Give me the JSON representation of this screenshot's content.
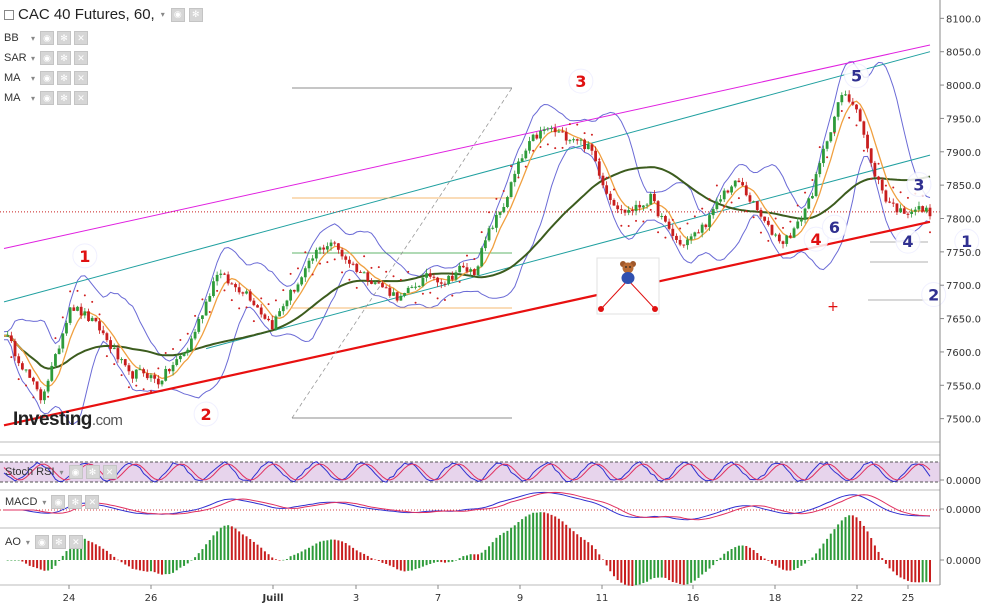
{
  "header": {
    "title": "CAC 40 Futures, 60,",
    "dropdown_glyph": "▾"
  },
  "indicators": [
    {
      "label": "BB"
    },
    {
      "label": "SAR"
    },
    {
      "label": "MA"
    },
    {
      "label": "MA"
    }
  ],
  "sub_panels": {
    "stoch": {
      "label": "Stoch RSI",
      "value": "0.0000"
    },
    "macd": {
      "label": "MACD",
      "value": "0.0000"
    },
    "ao": {
      "label": "AO",
      "value": "0.0000"
    }
  },
  "logo": {
    "brand": "Investing",
    "suffix": ".com"
  },
  "colors": {
    "candle_up": "#2e9b3a",
    "candle_down": "#c81e1e",
    "bollinger": "#6b6bd6",
    "ma_long": "#3c5c1e",
    "ma_short": "#f0a040",
    "trend_red": "#e81010",
    "trend_magenta": "#e020e0",
    "channel_teal": "#20a0a0",
    "wave_red": "#e01010",
    "wave_blue": "#303090",
    "sar": "#d02020"
  },
  "chart_data": {
    "type": "candlestick",
    "title": "CAC 40 Futures, 60,",
    "x_ticks": [
      "24",
      "26",
      "Juill",
      "3",
      "7",
      "9",
      "11",
      "16",
      "18",
      "22",
      "25"
    ],
    "y_ticks": [
      8100,
      8050,
      8000,
      7950,
      7900,
      7850,
      7800,
      7750,
      7700,
      7650,
      7600,
      7550,
      7500
    ],
    "y_tick_labels": [
      "8100.0",
      "8050.0",
      "8000.0",
      "7950.0",
      "7900.0",
      "7850.0",
      "7800.0",
      "7750.0",
      "7700.0",
      "7650.0",
      "7600.0",
      "7550.0",
      "7500.0"
    ],
    "ylim": [
      7465,
      8120
    ],
    "current_price": 7810,
    "price_path_anchors": [
      [
        0,
        7630
      ],
      [
        5,
        7580
      ],
      [
        10,
        7530
      ],
      [
        14,
        7590
      ],
      [
        18,
        7670
      ],
      [
        22,
        7655
      ],
      [
        26,
        7635
      ],
      [
        30,
        7600
      ],
      [
        34,
        7565
      ],
      [
        38,
        7570
      ],
      [
        42,
        7555
      ],
      [
        46,
        7580
      ],
      [
        50,
        7605
      ],
      [
        54,
        7660
      ],
      [
        58,
        7720
      ],
      [
        62,
        7700
      ],
      [
        66,
        7690
      ],
      [
        70,
        7660
      ],
      [
        73,
        7640
      ],
      [
        77,
        7680
      ],
      [
        81,
        7710
      ],
      [
        85,
        7750
      ],
      [
        89,
        7765
      ],
      [
        93,
        7740
      ],
      [
        97,
        7720
      ],
      [
        101,
        7705
      ],
      [
        105,
        7690
      ],
      [
        108,
        7680
      ],
      [
        112,
        7700
      ],
      [
        116,
        7715
      ],
      [
        120,
        7705
      ],
      [
        124,
        7725
      ],
      [
        128,
        7720
      ],
      [
        132,
        7780
      ],
      [
        136,
        7820
      ],
      [
        140,
        7880
      ],
      [
        144,
        7920
      ],
      [
        148,
        7935
      ],
      [
        152,
        7925
      ],
      [
        156,
        7920
      ],
      [
        160,
        7900
      ],
      [
        164,
        7840
      ],
      [
        168,
        7810
      ],
      [
        172,
        7815
      ],
      [
        176,
        7830
      ],
      [
        180,
        7790
      ],
      [
        184,
        7760
      ],
      [
        188,
        7775
      ],
      [
        192,
        7800
      ],
      [
        196,
        7840
      ],
      [
        200,
        7855
      ],
      [
        204,
        7820
      ],
      [
        208,
        7785
      ],
      [
        212,
        7765
      ],
      [
        216,
        7790
      ],
      [
        220,
        7840
      ],
      [
        224,
        7920
      ],
      [
        228,
        7985
      ],
      [
        232,
        7970
      ],
      [
        236,
        7880
      ],
      [
        240,
        7830
      ],
      [
        244,
        7810
      ],
      [
        248,
        7815
      ],
      [
        252,
        7810
      ]
    ],
    "trend_lines": [
      {
        "name": "red_support",
        "points": [
          [
            0,
            7490
          ],
          [
            252,
            7795
          ]
        ]
      },
      {
        "name": "magenta_upper",
        "points": [
          [
            0,
            7755
          ],
          [
            252,
            8060
          ]
        ]
      },
      {
        "name": "teal_upper",
        "points": [
          [
            0,
            7675
          ],
          [
            252,
            8050
          ]
        ]
      },
      {
        "name": "teal_lower",
        "points": [
          [
            55,
            7605
          ],
          [
            252,
            7895
          ]
        ]
      }
    ],
    "horizontal_levels": [
      {
        "value": 7810,
        "style": "dotted",
        "color": "#c81e1e"
      }
    ],
    "wave_labels": [
      {
        "label": "1",
        "x": 22,
        "y": 7735,
        "color": "red"
      },
      {
        "label": "2",
        "x": 55,
        "y": 7498,
        "color": "red"
      },
      {
        "label": "3",
        "x": 157,
        "y": 7997,
        "color": "red"
      },
      {
        "label": "4",
        "x": 221,
        "y": 7760,
        "color": "red"
      },
      {
        "label": "5",
        "x": 232,
        "y": 8005,
        "color": "blue"
      },
      {
        "label": "6",
        "x": 226,
        "y": 7778,
        "color": "blue"
      },
      {
        "label": "3",
        "x": 249,
        "y": 7842,
        "color": "blue"
      },
      {
        "label": "4",
        "x": 246,
        "y": 7757,
        "color": "blue"
      },
      {
        "label": "1",
        "x": 262,
        "y": 7757,
        "color": "blue"
      },
      {
        "label": "2",
        "x": 253,
        "y": 7677,
        "color": "blue"
      }
    ]
  }
}
